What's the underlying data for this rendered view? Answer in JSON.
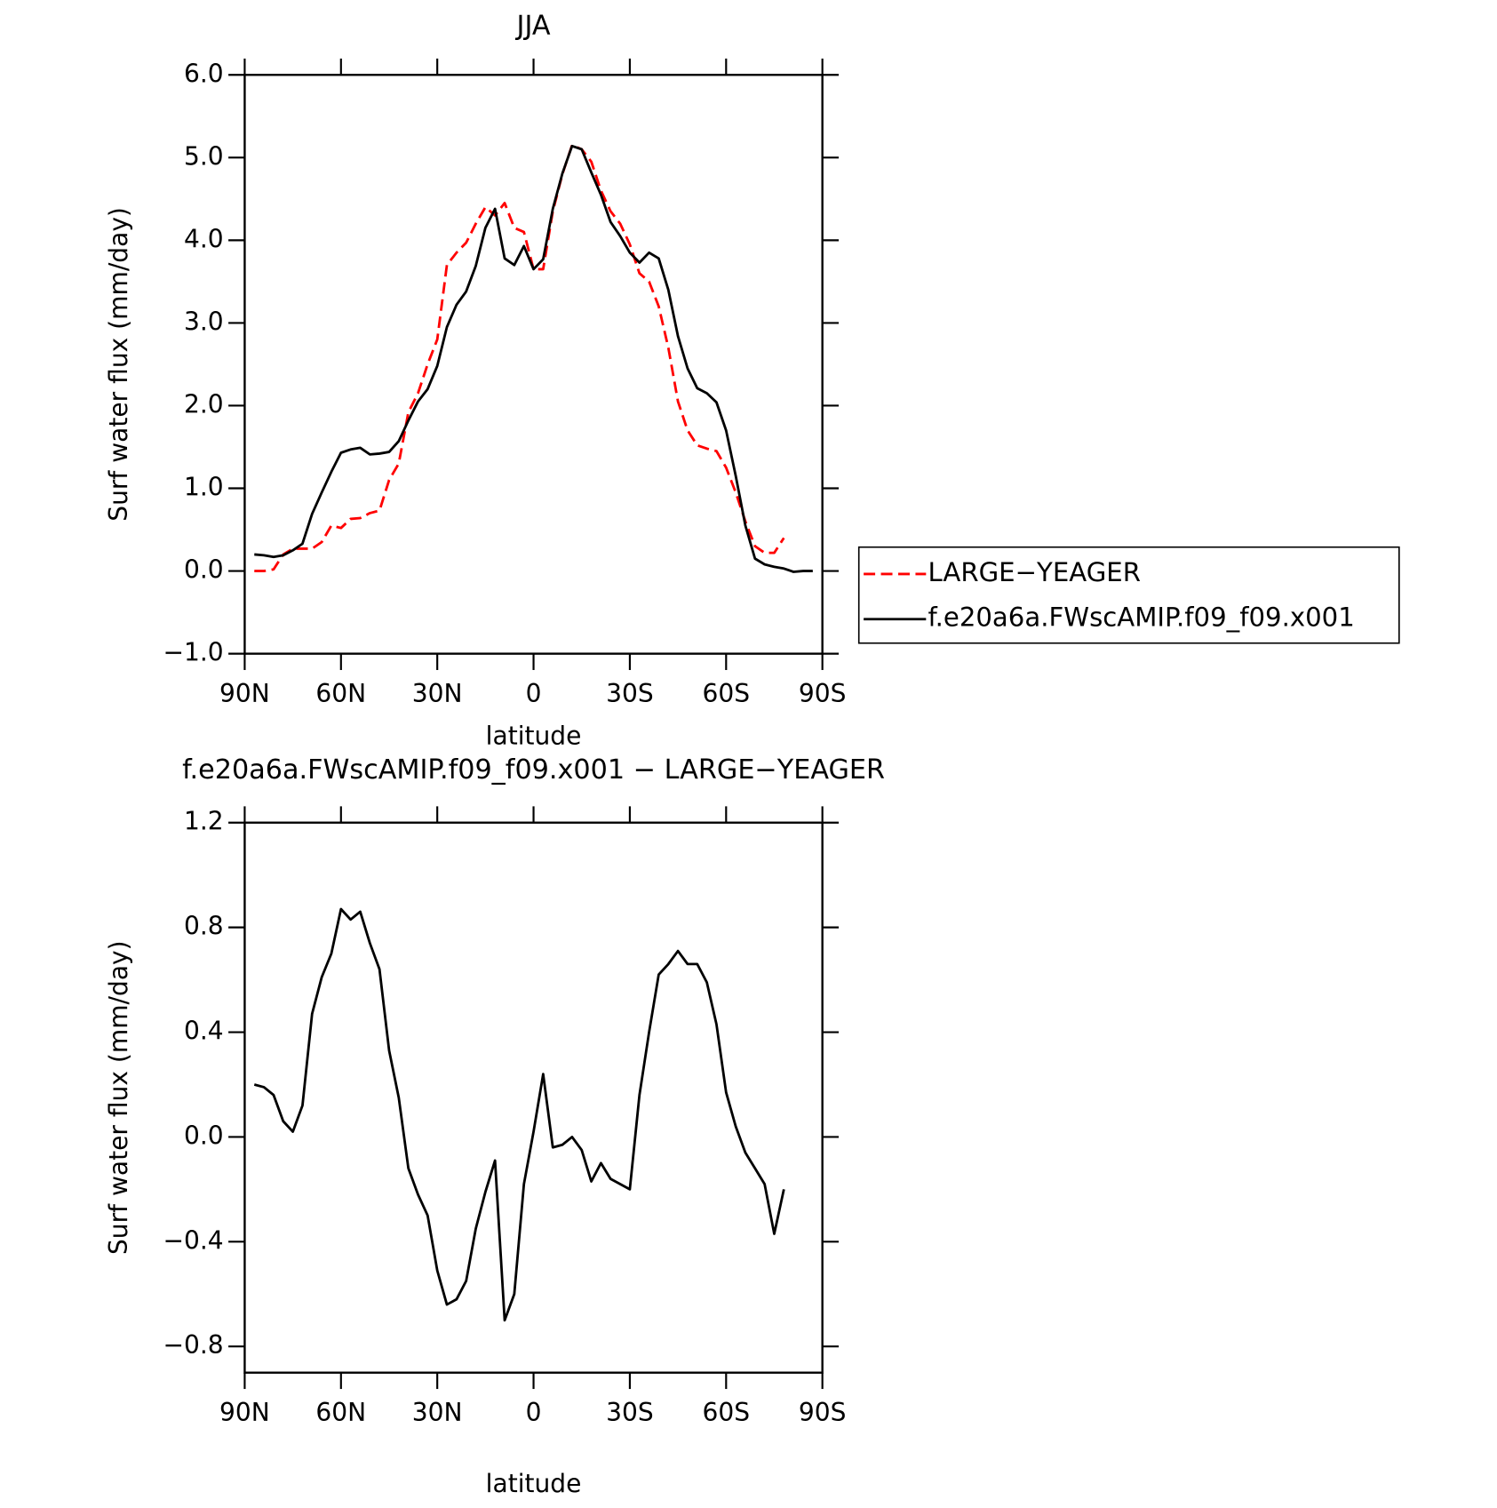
{
  "chart_data": [
    {
      "type": "line",
      "title": "JJA",
      "xlabel": "latitude",
      "ylabel": "Surf water flux (mm/day)",
      "x": [
        87,
        84,
        81,
        78,
        75,
        72,
        69,
        66,
        63,
        60,
        57,
        54,
        51,
        48,
        45,
        42,
        39,
        36,
        33,
        30,
        27,
        24,
        21,
        18,
        15,
        12,
        9,
        6,
        3,
        0,
        -3,
        -6,
        -9,
        -12,
        -15,
        -18,
        -21,
        -24,
        -27,
        -30,
        -33,
        -36,
        -39,
        -42,
        -45,
        -48,
        -51,
        -54,
        -57,
        -60,
        -63,
        -66,
        -69,
        -72,
        -75,
        -78,
        -81,
        -84,
        -87
      ],
      "xlim": [
        90,
        -90
      ],
      "xticks": [
        {
          "value": 90,
          "label": "90N"
        },
        {
          "value": 60,
          "label": "60N"
        },
        {
          "value": 30,
          "label": "30N"
        },
        0,
        {
          "value": -30,
          "label": "30S"
        },
        {
          "value": -60,
          "label": "60S"
        },
        {
          "value": -90,
          "label": "90S"
        }
      ],
      "ylim": [
        -1,
        6
      ],
      "yticks": [
        {
          "value": -1,
          "label": "−1.0"
        },
        {
          "value": 0,
          "label": "0.0"
        },
        {
          "value": 1,
          "label": "1.0"
        },
        {
          "value": 2,
          "label": "2.0"
        },
        {
          "value": 3,
          "label": "3.0"
        },
        {
          "value": 4,
          "label": "4.0"
        },
        {
          "value": 5,
          "label": "5.0"
        },
        {
          "value": 6,
          "label": "6.0"
        }
      ],
      "legend": "outside-right",
      "series": [
        {
          "name": "LARGE−YEAGER",
          "color": "#ff0000",
          "style": "dashed",
          "values": [
            0.0,
            0.0,
            0.02,
            0.2,
            0.27,
            0.27,
            0.27,
            0.35,
            0.55,
            0.52,
            0.63,
            0.64,
            0.7,
            0.73,
            1.1,
            1.3,
            1.92,
            2.15,
            2.5,
            2.8,
            3.7,
            3.85,
            3.97,
            4.2,
            4.4,
            4.3,
            4.45,
            4.15,
            4.1,
            3.65,
            3.65,
            4.35,
            4.8,
            5.15,
            5.1,
            4.95,
            4.6,
            4.35,
            4.2,
            3.95,
            3.6,
            3.5,
            3.2,
            2.7,
            2.05,
            1.7,
            1.52,
            1.48,
            1.45,
            1.25,
            0.95,
            0.6,
            0.3,
            0.22,
            0.22,
            0.4,
            null,
            null,
            null
          ]
        },
        {
          "name": "f.e20a6a.FWscAMIP.f09_f09.x001",
          "color": "#000000",
          "style": "solid",
          "values": [
            0.2,
            0.19,
            0.17,
            0.19,
            0.25,
            0.33,
            0.69,
            0.95,
            1.2,
            1.43,
            1.47,
            1.49,
            1.41,
            1.42,
            1.44,
            1.57,
            1.82,
            2.05,
            2.2,
            2.48,
            2.95,
            3.22,
            3.38,
            3.69,
            4.15,
            4.38,
            3.78,
            3.7,
            3.93,
            3.65,
            3.77,
            4.38,
            4.81,
            5.14,
            5.1,
            4.82,
            4.55,
            4.22,
            4.05,
            3.85,
            3.73,
            3.85,
            3.78,
            3.4,
            2.84,
            2.45,
            2.21,
            2.15,
            2.04,
            1.7,
            1.15,
            0.55,
            0.15,
            0.08,
            0.05,
            0.03,
            -0.01,
            0.0,
            0.0
          ]
        }
      ]
    },
    {
      "type": "line",
      "title": "f.e20a6a.FWscAMIP.f09_f09.x001 − LARGE−YEAGER",
      "xlabel": "latitude",
      "ylabel": "Surf water flux (mm/day)",
      "x": [
        87,
        84,
        81,
        78,
        75,
        72,
        69,
        66,
        63,
        60,
        57,
        54,
        51,
        48,
        45,
        42,
        39,
        36,
        33,
        30,
        27,
        24,
        21,
        18,
        15,
        12,
        9,
        6,
        3,
        0,
        -3,
        -6,
        -9,
        -12,
        -15,
        -18,
        -21,
        -24,
        -27,
        -30,
        -33,
        -36,
        -39,
        -42,
        -45,
        -48,
        -51,
        -54,
        -57,
        -60,
        -63,
        -66,
        -69,
        -72,
        -75,
        -78,
        -81,
        -84,
        -87
      ],
      "xlim": [
        90,
        -90
      ],
      "xticks": [
        {
          "value": 90,
          "label": "90N"
        },
        {
          "value": 60,
          "label": "60N"
        },
        {
          "value": 30,
          "label": "30N"
        },
        0,
        {
          "value": -30,
          "label": "30S"
        },
        {
          "value": -60,
          "label": "60S"
        },
        {
          "value": -90,
          "label": "90S"
        }
      ],
      "ylim": [
        -0.9,
        1.2
      ],
      "yticks": [
        {
          "value": -0.8,
          "label": "−0.8"
        },
        {
          "value": -0.4,
          "label": "−0.4"
        },
        {
          "value": 0,
          "label": "0.0"
        },
        0.4,
        0.8,
        1.2
      ],
      "series": [
        {
          "color": "#000000",
          "style": "solid",
          "values": [
            0.2,
            0.19,
            0.16,
            0.06,
            0.02,
            0.12,
            0.47,
            0.61,
            0.7,
            0.87,
            0.83,
            0.86,
            0.74,
            0.64,
            0.33,
            0.15,
            -0.12,
            -0.22,
            -0.3,
            -0.51,
            -0.64,
            -0.62,
            -0.55,
            -0.35,
            -0.21,
            -0.09,
            -0.7,
            -0.6,
            -0.18,
            0.02,
            0.24,
            -0.04,
            -0.03,
            0.0,
            -0.05,
            -0.17,
            -0.1,
            -0.16,
            -0.18,
            -0.2,
            0.16,
            0.4,
            0.62,
            0.66,
            0.71,
            0.66,
            0.66,
            0.59,
            0.43,
            0.17,
            0.04,
            -0.06,
            -0.12,
            -0.18,
            -0.37,
            -0.2,
            null,
            null,
            null
          ]
        }
      ]
    }
  ]
}
